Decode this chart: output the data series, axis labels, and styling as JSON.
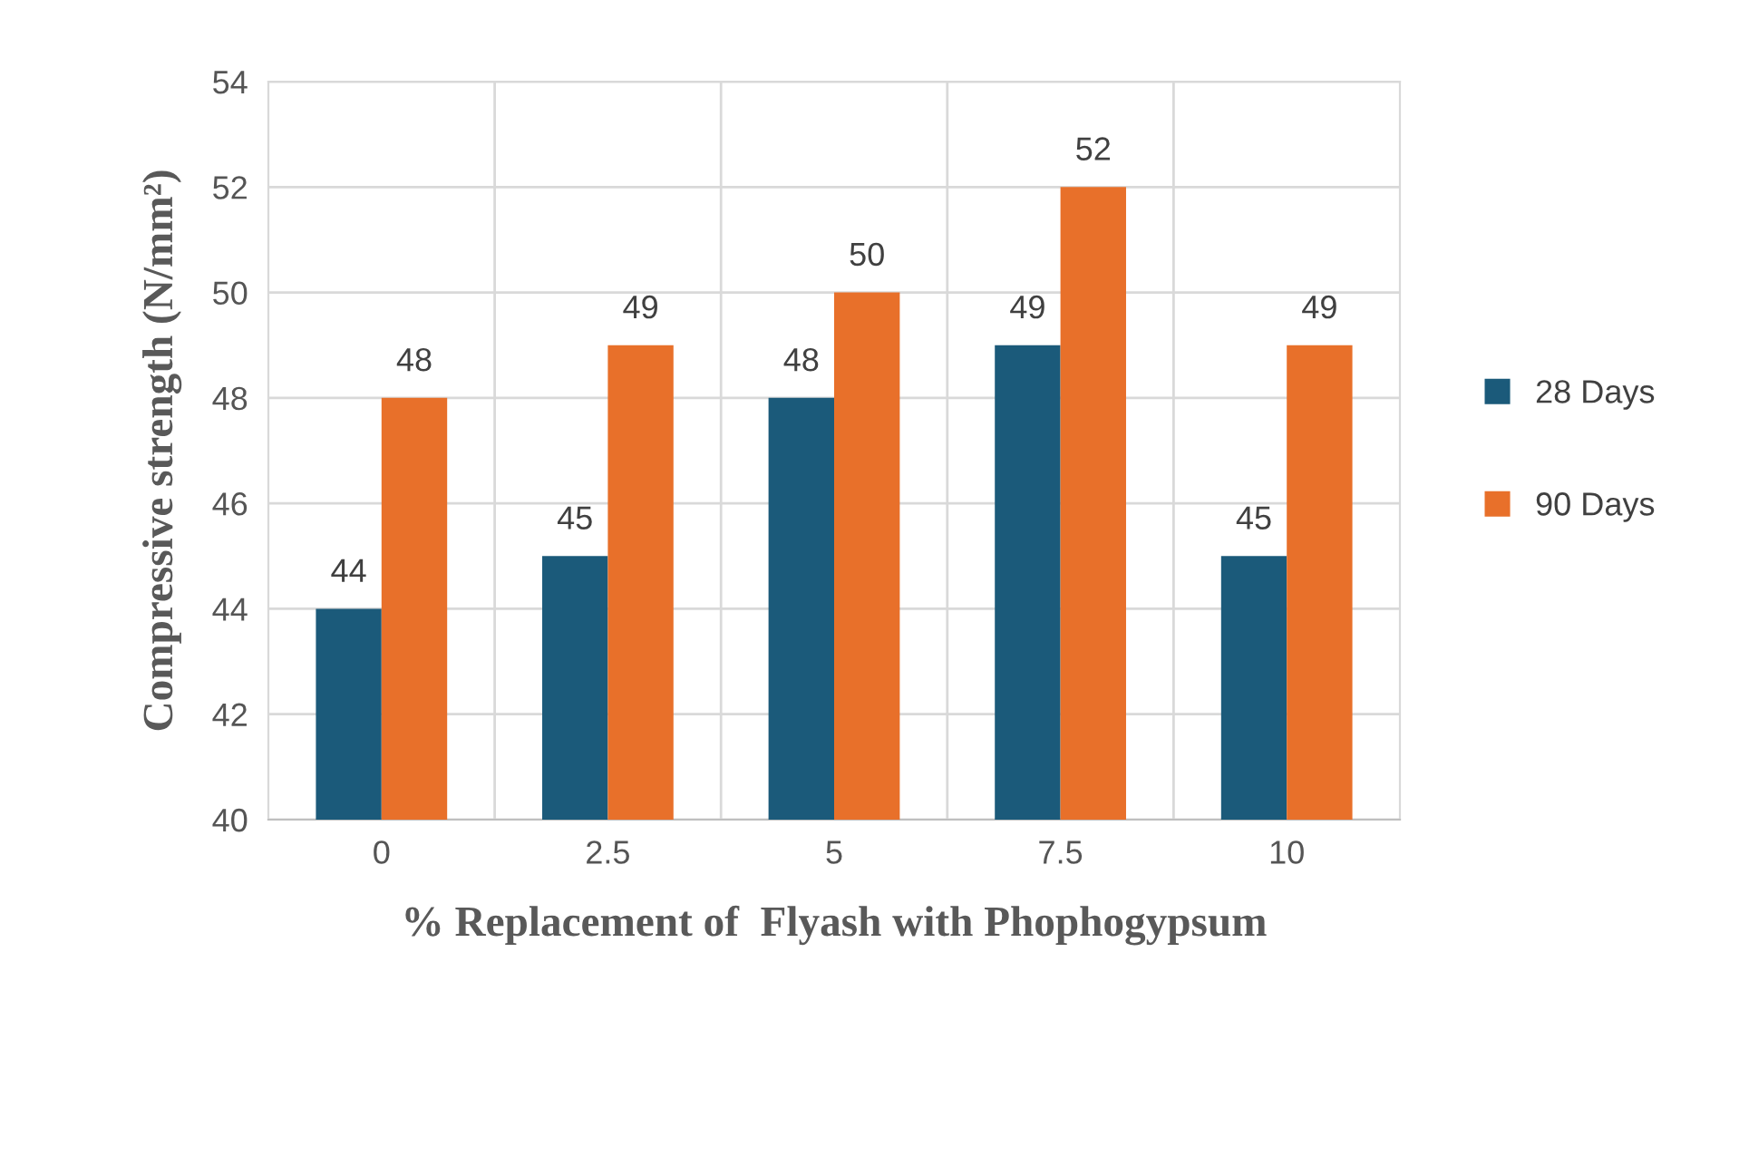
{
  "chart_data": {
    "type": "bar",
    "xlabel": "% Replacement of  Flyash with Phophogypsum",
    "ylabel": "Compressive strength (N/mm²)",
    "categories": [
      "0",
      "2.5",
      "5",
      "7.5",
      "10"
    ],
    "series": [
      {
        "name": "28 Days",
        "color": "#1b5a7a",
        "values": [
          44,
          45,
          48,
          49,
          45
        ]
      },
      {
        "name": "90 Days",
        "color": "#e8702a",
        "values": [
          48,
          49,
          50,
          52,
          49
        ]
      }
    ],
    "ylim": [
      40,
      54
    ],
    "yticks": [
      40,
      42,
      44,
      46,
      48,
      50,
      52,
      54
    ],
    "grid": true,
    "legend": "right",
    "data_labels": true
  }
}
